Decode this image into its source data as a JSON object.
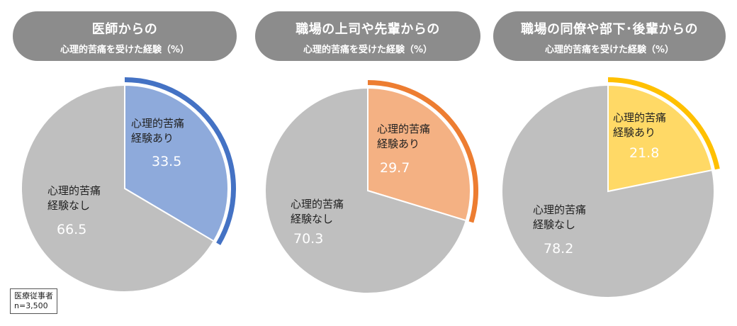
{
  "chart_data": [
    {
      "type": "pie",
      "title": "医師からの",
      "subtitle": "心理的苦痛を受けた経験（%）",
      "slices": [
        {
          "label_line1": "心理的苦痛",
          "label_line2": "経験あり",
          "value": 33.5,
          "value_text": "33.5",
          "color": "#8eaadb"
        },
        {
          "label_line1": "心理的苦痛",
          "label_line2": "経験なし",
          "value": 66.5,
          "value_text": "66.5",
          "color": "#bfbfbf"
        }
      ],
      "accent_color": "#4472c4"
    },
    {
      "type": "pie",
      "title": "職場の上司や先輩からの",
      "subtitle": "心理的苦痛を受けた経験（%）",
      "slices": [
        {
          "label_line1": "心理的苦痛",
          "label_line2": "経験あり",
          "value": 29.7,
          "value_text": "29.7",
          "color": "#f4b183"
        },
        {
          "label_line1": "心理的苦痛",
          "label_line2": "経験なし",
          "value": 70.3,
          "value_text": "70.3",
          "color": "#bfbfbf"
        }
      ],
      "accent_color": "#ed7d31"
    },
    {
      "type": "pie",
      "title": "職場の同僚や部下･後輩からの",
      "subtitle": "心理的苦痛を受けた経験（%）",
      "slices": [
        {
          "label_line1": "心理的苦痛",
          "label_line2": "経験あり",
          "value": 21.8,
          "value_text": "21.8",
          "color": "#ffd966"
        },
        {
          "label_line1": "心理的苦痛",
          "label_line2": "経験なし",
          "value": 78.2,
          "value_text": "78.2",
          "color": "#bfbfbf"
        }
      ],
      "accent_color": "#ffc000"
    }
  ],
  "note": {
    "line1": "医療従事者",
    "line2": "n=3,500"
  }
}
